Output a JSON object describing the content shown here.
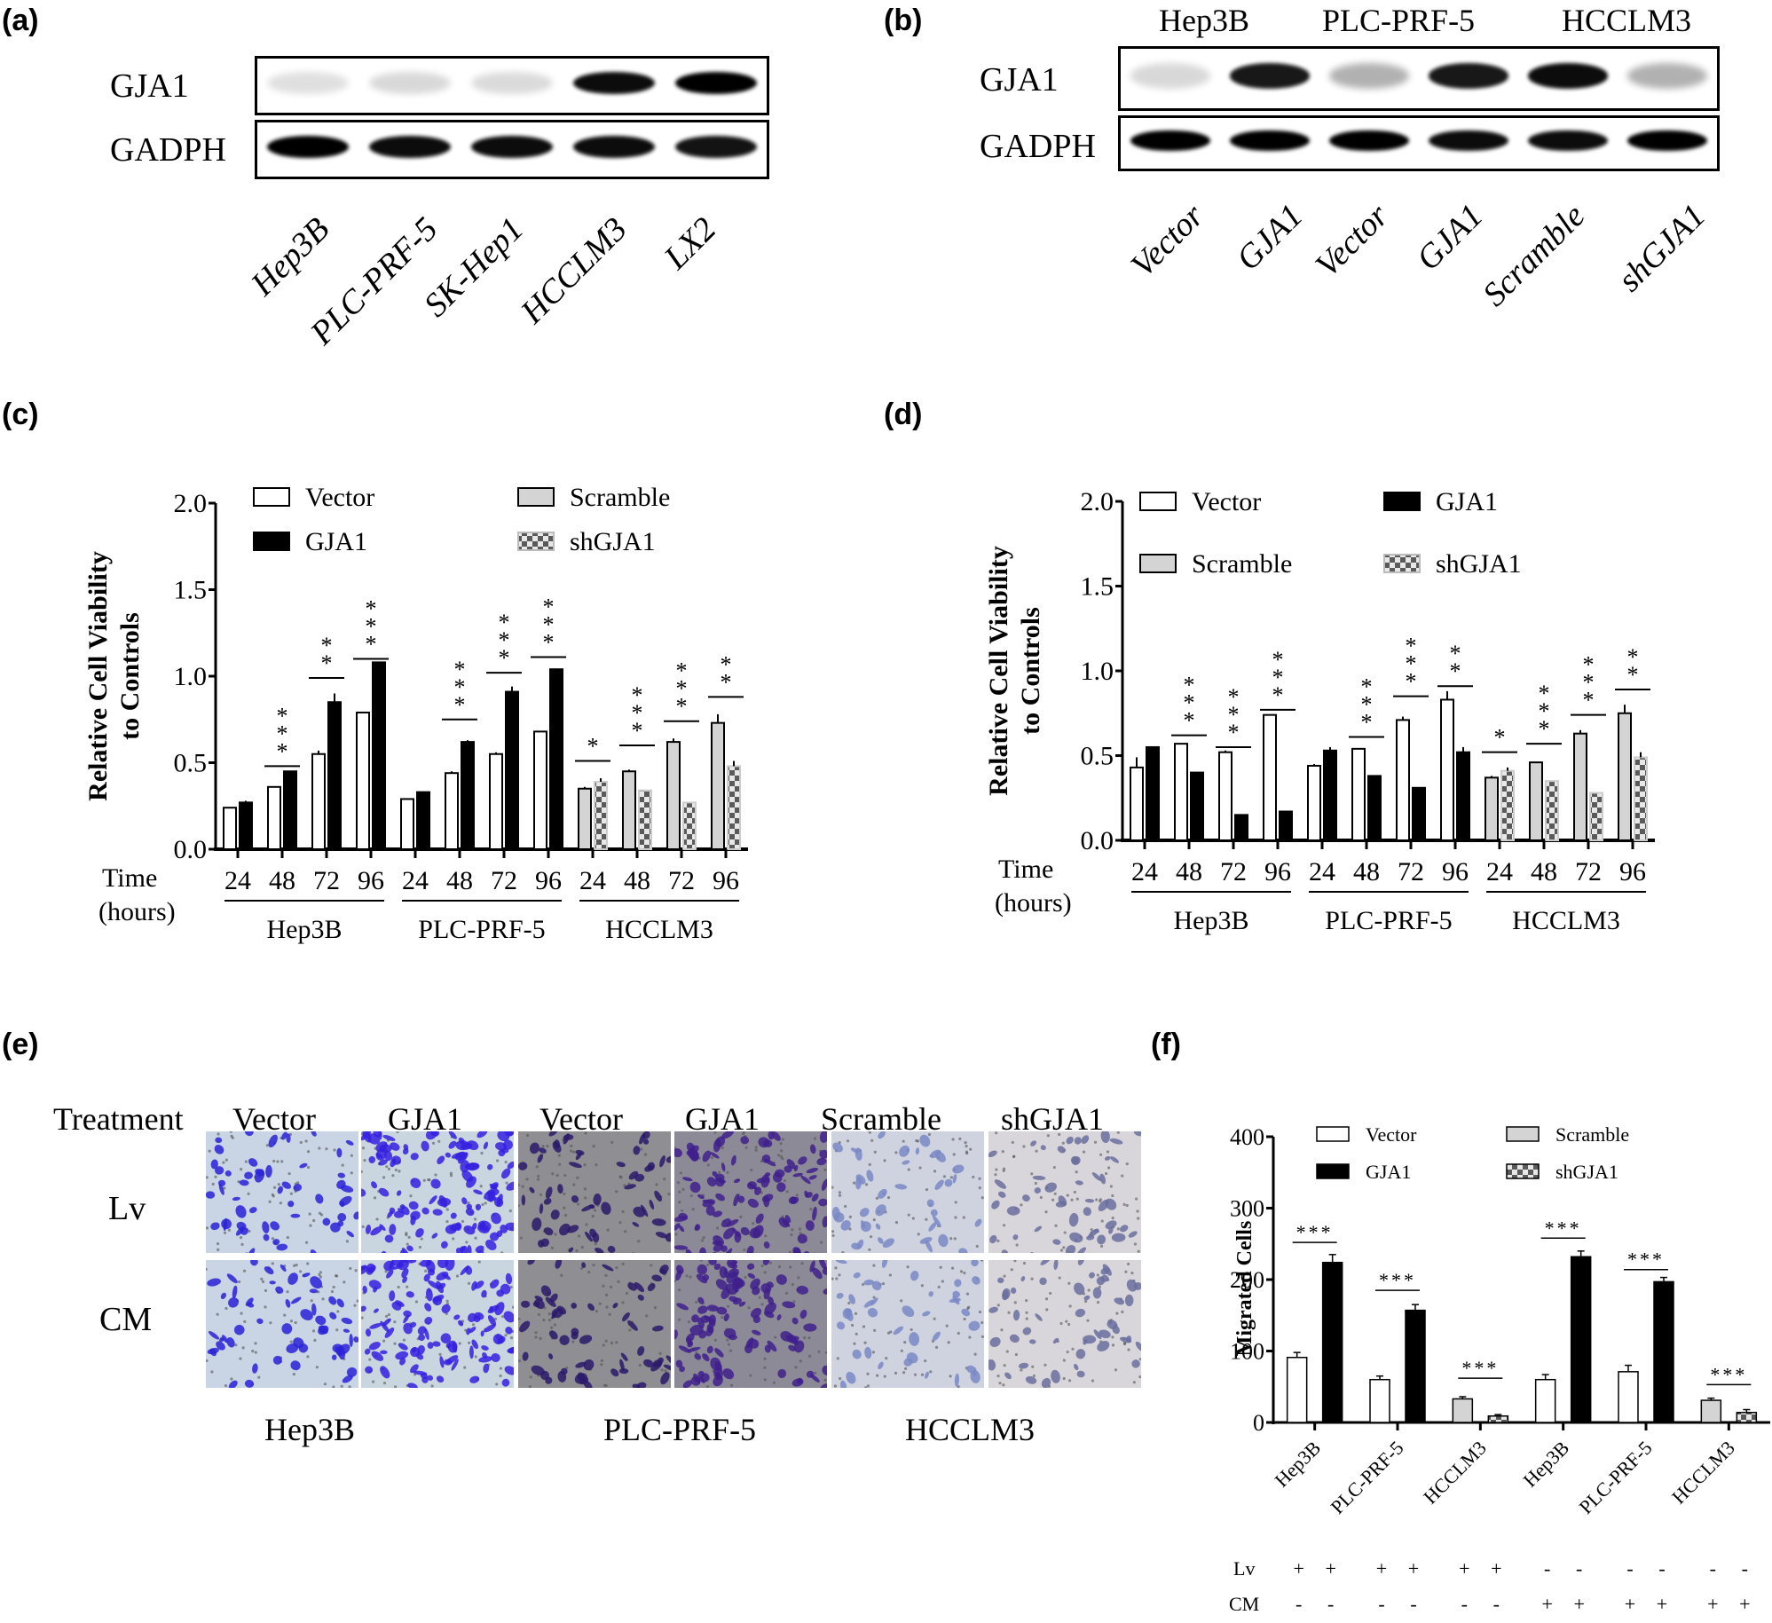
{
  "panels": {
    "a": {
      "label": "(a)",
      "rows": [
        "GJA1",
        "GADPH"
      ],
      "lanes": [
        "Hep3B",
        "PLC-PRF-5",
        "SK-Hep1",
        "HCCLM3",
        "LX2"
      ],
      "gja1_intensity": [
        0.12,
        0.15,
        0.14,
        0.95,
        1.0
      ],
      "gadph_intensity": [
        1.0,
        0.95,
        0.95,
        0.95,
        0.92
      ]
    },
    "b": {
      "label": "(b)",
      "groups": [
        "Hep3B",
        "PLC-PRF-5",
        "HCCLM3"
      ],
      "rows": [
        "GJA1",
        "GADPH"
      ],
      "lanes": [
        "Vector",
        "GJA1",
        "Vector",
        "GJA1",
        "Scramble",
        "shGJA1"
      ],
      "gja1_intensity": [
        0.15,
        0.9,
        0.3,
        0.9,
        0.95,
        0.3
      ],
      "gadph_intensity": [
        1.0,
        1.0,
        1.0,
        0.95,
        0.95,
        1.0
      ]
    },
    "c": {
      "label": "(c)"
    },
    "d": {
      "label": "(d)"
    },
    "e": {
      "label": "(e)",
      "header": {
        "treatment": "Treatment",
        "columns": [
          "Vector",
          "GJA1",
          "Vector",
          "GJA1",
          "Scramble",
          "shGJA1"
        ]
      },
      "rows": [
        "Lv",
        "CM"
      ],
      "cell_lines": [
        "Hep3B",
        "PLC-PRF-5",
        "HCCLM3"
      ]
    },
    "f": {
      "label": "(f)"
    }
  },
  "chart_data": [
    {
      "id": "c",
      "type": "bar",
      "title": "",
      "ylabel": "Relative Cell Viability to Controls",
      "xlabel": "Time (hours)",
      "ylim": [
        0,
        2.0
      ],
      "yticks": [
        "0.0",
        "0.5",
        "1.0",
        "1.5",
        "2.0"
      ],
      "x_title": [
        "Time",
        "(hours)"
      ],
      "legend": [
        {
          "name": "Vector",
          "style": "white"
        },
        {
          "name": "GJA1",
          "style": "black"
        },
        {
          "name": "Scramble",
          "style": "gray"
        },
        {
          "name": "shGJA1",
          "style": "checker"
        }
      ],
      "legend_layout": "columns",
      "groups": [
        {
          "name": "Hep3B",
          "times": [
            "24",
            "48",
            "72",
            "96"
          ],
          "series": [
            {
              "name": "Vector",
              "style": "white",
              "values": [
                0.24,
                0.36,
                0.55,
                0.79
              ],
              "err": [
                0.0,
                0.0,
                0.02,
                0.0
              ]
            },
            {
              "name": "GJA1",
              "style": "black",
              "values": [
                0.27,
                0.45,
                0.85,
                1.08
              ],
              "err": [
                0.01,
                0.0,
                0.05,
                0.0
              ]
            }
          ],
          "sig": [
            "",
            "***",
            "**",
            "***"
          ],
          "sig_y": [
            0,
            0.48,
            0.99,
            1.1
          ]
        },
        {
          "name": "PLC-PRF-5",
          "times": [
            "24",
            "48",
            "72",
            "96"
          ],
          "series": [
            {
              "name": "Vector",
              "style": "white",
              "values": [
                0.29,
                0.44,
                0.55,
                0.68
              ],
              "err": [
                0.0,
                0.01,
                0.01,
                0.0
              ]
            },
            {
              "name": "GJA1",
              "style": "black",
              "values": [
                0.33,
                0.62,
                0.91,
                1.04
              ],
              "err": [
                0.0,
                0.01,
                0.03,
                0.0
              ]
            }
          ],
          "sig": [
            "",
            "***",
            "***",
            "***"
          ],
          "sig_y": [
            0,
            0.75,
            1.02,
            1.11
          ]
        },
        {
          "name": "HCCLM3",
          "times": [
            "24",
            "48",
            "72",
            "96"
          ],
          "series": [
            {
              "name": "Scramble",
              "style": "gray",
              "values": [
                0.35,
                0.45,
                0.62,
                0.73
              ],
              "err": [
                0.01,
                0.01,
                0.02,
                0.05
              ]
            },
            {
              "name": "shGJA1",
              "style": "checker",
              "values": [
                0.39,
                0.34,
                0.27,
                0.48
              ],
              "err": [
                0.02,
                0.0,
                0.0,
                0.03
              ]
            }
          ],
          "sig": [
            "*",
            "***",
            "***",
            "**"
          ],
          "sig_y": [
            0.51,
            0.6,
            0.74,
            0.88
          ]
        }
      ]
    },
    {
      "id": "d",
      "type": "bar",
      "title": "",
      "ylabel": "Relative Cell Viability to Controls",
      "xlabel": "Time (hours)",
      "ylim": [
        0,
        2.0
      ],
      "yticks": [
        "0.0",
        "0.5",
        "1.0",
        "1.5",
        "2.0"
      ],
      "x_title": [
        "Time",
        "(hours)"
      ],
      "legend": [
        {
          "name": "Vector",
          "style": "white"
        },
        {
          "name": "Scramble",
          "style": "gray"
        },
        {
          "name": "GJA1",
          "style": "black"
        },
        {
          "name": "shGJA1",
          "style": "checker"
        }
      ],
      "legend_layout": "columns",
      "groups": [
        {
          "name": "Hep3B",
          "times": [
            "24",
            "48",
            "72",
            "96"
          ],
          "series": [
            {
              "name": "Vector",
              "style": "white",
              "values": [
                0.43,
                0.57,
                0.52,
                0.74
              ],
              "err": [
                0.06,
                0.0,
                0.01,
                0.0
              ]
            },
            {
              "name": "GJA1",
              "style": "black",
              "values": [
                0.55,
                0.4,
                0.15,
                0.17
              ],
              "err": [
                0.0,
                0.0,
                0.0,
                0.0
              ]
            }
          ],
          "sig": [
            "",
            "***",
            "***",
            "***"
          ],
          "sig_y": [
            0,
            0.62,
            0.55,
            0.77
          ]
        },
        {
          "name": "PLC-PRF-5",
          "times": [
            "24",
            "48",
            "72",
            "96"
          ],
          "series": [
            {
              "name": "Vector",
              "style": "white",
              "values": [
                0.44,
                0.54,
                0.71,
                0.83
              ],
              "err": [
                0.01,
                0.0,
                0.02,
                0.05
              ]
            },
            {
              "name": "GJA1",
              "style": "black",
              "values": [
                0.53,
                0.38,
                0.31,
                0.52
              ],
              "err": [
                0.02,
                0.0,
                0.0,
                0.03
              ]
            }
          ],
          "sig": [
            "",
            "***",
            "***",
            "**"
          ],
          "sig_y": [
            0,
            0.61,
            0.85,
            0.91
          ]
        },
        {
          "name": "HCCLM3",
          "times": [
            "24",
            "48",
            "72",
            "96"
          ],
          "series": [
            {
              "name": "Scramble",
              "style": "gray",
              "values": [
                0.37,
                0.46,
                0.63,
                0.75
              ],
              "err": [
                0.01,
                0.0,
                0.02,
                0.05
              ]
            },
            {
              "name": "shGJA1",
              "style": "checker",
              "values": [
                0.41,
                0.35,
                0.28,
                0.49
              ],
              "err": [
                0.02,
                0.0,
                0.0,
                0.03
              ]
            }
          ],
          "sig": [
            "*",
            "***",
            "***",
            "**"
          ],
          "sig_y": [
            0.52,
            0.57,
            0.74,
            0.89
          ]
        }
      ]
    },
    {
      "id": "f",
      "type": "bar",
      "title": "",
      "ylabel": "Migrated Cells",
      "ylim": [
        0,
        400
      ],
      "yticks": [
        "0",
        "100",
        "200",
        "300",
        "400"
      ],
      "legend": [
        {
          "name": "Vector",
          "style": "white"
        },
        {
          "name": "GJA1",
          "style": "black"
        },
        {
          "name": "Scramble",
          "style": "gray"
        },
        {
          "name": "shGJA1",
          "style": "checker"
        }
      ],
      "categories": [
        "Hep3B",
        "PLC-PRF-5",
        "HCCLM3",
        "Hep3B",
        "PLC-PRF-5",
        "HCCLM3"
      ],
      "pairs": [
        {
          "styles": [
            "white",
            "black"
          ],
          "values": [
            91,
            224
          ],
          "err": [
            7,
            11
          ],
          "sig": "***",
          "sig_y": 252
        },
        {
          "styles": [
            "white",
            "black"
          ],
          "values": [
            60,
            157
          ],
          "err": [
            5,
            8
          ],
          "sig": "***",
          "sig_y": 185
        },
        {
          "styles": [
            "gray",
            "checker"
          ],
          "values": [
            33,
            9
          ],
          "err": [
            3,
            2
          ],
          "sig": "***",
          "sig_y": 62
        },
        {
          "styles": [
            "white",
            "black"
          ],
          "values": [
            60,
            232
          ],
          "err": [
            7,
            8
          ],
          "sig": "***",
          "sig_y": 258
        },
        {
          "styles": [
            "white",
            "black"
          ],
          "values": [
            71,
            197
          ],
          "err": [
            9,
            6
          ],
          "sig": "***",
          "sig_y": 214
        },
        {
          "styles": [
            "gray",
            "checker"
          ],
          "values": [
            31,
            14
          ],
          "err": [
            3,
            4
          ],
          "sig": "***",
          "sig_y": 53
        }
      ],
      "conditions": {
        "Lv": [
          "+",
          "+",
          "+",
          "+",
          "+",
          "+",
          "-",
          "-",
          "-",
          "-",
          "-",
          "-"
        ],
        "CM": [
          "-",
          "-",
          "-",
          "-",
          "-",
          "-",
          "+",
          "+",
          "+",
          "+",
          "+",
          "+"
        ]
      }
    }
  ]
}
